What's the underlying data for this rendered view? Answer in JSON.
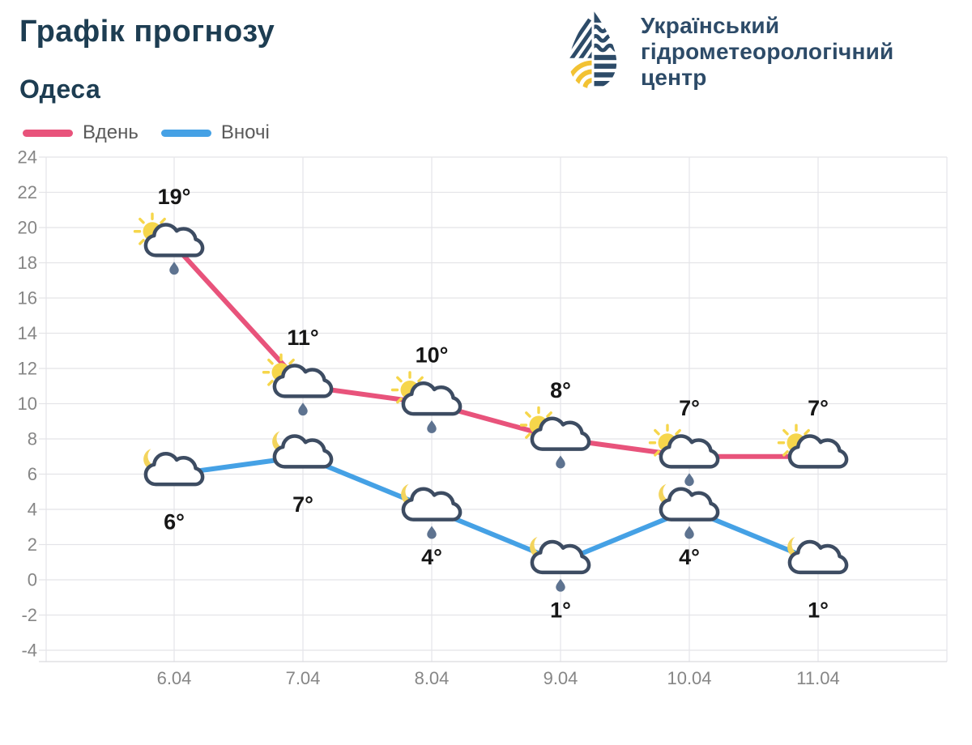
{
  "header": {
    "title": "Графік прогнозу",
    "city": "Одеса",
    "title_color": "#1d3d52"
  },
  "logo": {
    "org_name_lines": [
      "Український",
      "гідрометеорологічний",
      "центр"
    ],
    "navy": "#2d4b68",
    "yellow": "#f2c233"
  },
  "legend": {
    "items": [
      {
        "label": "Вдень",
        "color": "#e8537b"
      },
      {
        "label": "Вночі",
        "color": "#45a1e5"
      }
    ]
  },
  "chart_data": {
    "type": "line",
    "title": "",
    "xlabel": "",
    "ylabel": "",
    "categories": [
      "6.04",
      "7.04",
      "8.04",
      "9.04",
      "10.04",
      "11.04"
    ],
    "series": [
      {
        "name": "Вдень",
        "color": "#e8537b",
        "values": [
          19,
          11,
          10,
          8,
          7,
          7
        ],
        "point_labels": [
          "19°",
          "11°",
          "10°",
          "8°",
          "7°",
          "7°"
        ],
        "label_position": "above",
        "icons": [
          {
            "variant": "sun",
            "rain": true
          },
          {
            "variant": "sun",
            "rain": true
          },
          {
            "variant": "sun",
            "rain": true
          },
          {
            "variant": "sun",
            "rain": true
          },
          {
            "variant": "sun",
            "rain": true
          },
          {
            "variant": "sun",
            "rain": false
          }
        ]
      },
      {
        "name": "Вночі",
        "color": "#45a1e5",
        "values": [
          6,
          7,
          4,
          1,
          4,
          1
        ],
        "point_labels": [
          "6°",
          "7°",
          "4°",
          "1°",
          "4°",
          "1°"
        ],
        "label_position": "below",
        "icons": [
          {
            "variant": "moon",
            "rain": false
          },
          {
            "variant": "moon",
            "rain": false
          },
          {
            "variant": "moon",
            "rain": true
          },
          {
            "variant": "moon",
            "rain": true
          },
          {
            "variant": "moon",
            "rain": true
          },
          {
            "variant": "moon",
            "rain": false
          }
        ]
      }
    ],
    "ylim": [
      -4,
      24
    ],
    "ytick_step": 2,
    "grid": true,
    "legend_position": "top-left",
    "line_width": 6,
    "axis_label_color": "#868686",
    "grid_color": "#e4e4e8",
    "point_label_color": "#161616",
    "icon_colors": {
      "cloud_stroke": "#3d4c62",
      "cloud_fill": "#ffffff",
      "sun": "#f6d64b",
      "moon": "#f3d45c",
      "raindrop": "#5e7390"
    }
  }
}
